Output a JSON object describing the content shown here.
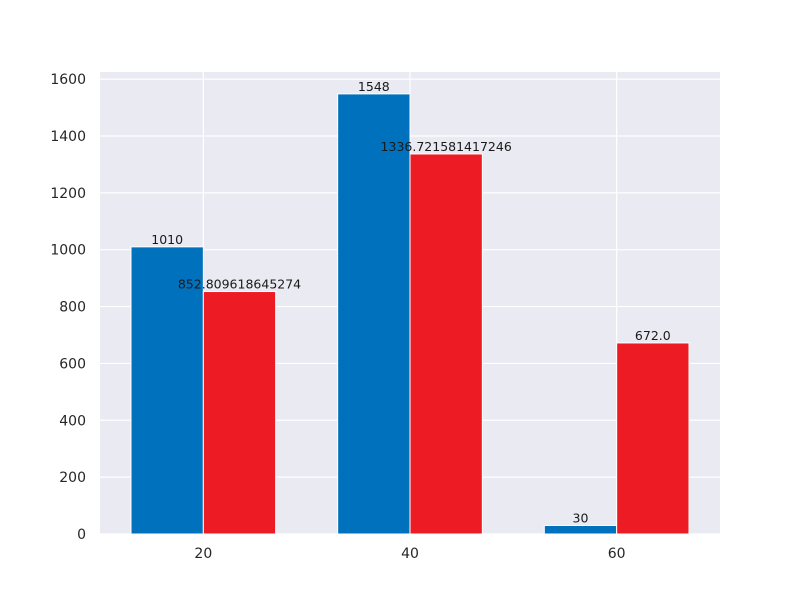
{
  "chart_data": {
    "type": "bar",
    "categories": [
      "20",
      "40",
      "60"
    ],
    "series": [
      {
        "values": [
          1010,
          1548,
          30
        ],
        "labels": [
          "1010",
          "1548",
          "30"
        ],
        "color": "#0071bc"
      },
      {
        "values": [
          852.809618645274,
          1336.721581417246,
          672.0
        ],
        "labels": [
          "852.809618645274",
          "1336.721581417246",
          "672.0"
        ],
        "color": "#ed1c24"
      }
    ],
    "title": "",
    "xlabel": "",
    "ylabel": "",
    "ylim": [
      0,
      1625
    ],
    "yticks": [
      0,
      200,
      400,
      600,
      800,
      1000,
      1200,
      1400,
      1600
    ],
    "grid": true,
    "background": "#eaeaf2"
  }
}
